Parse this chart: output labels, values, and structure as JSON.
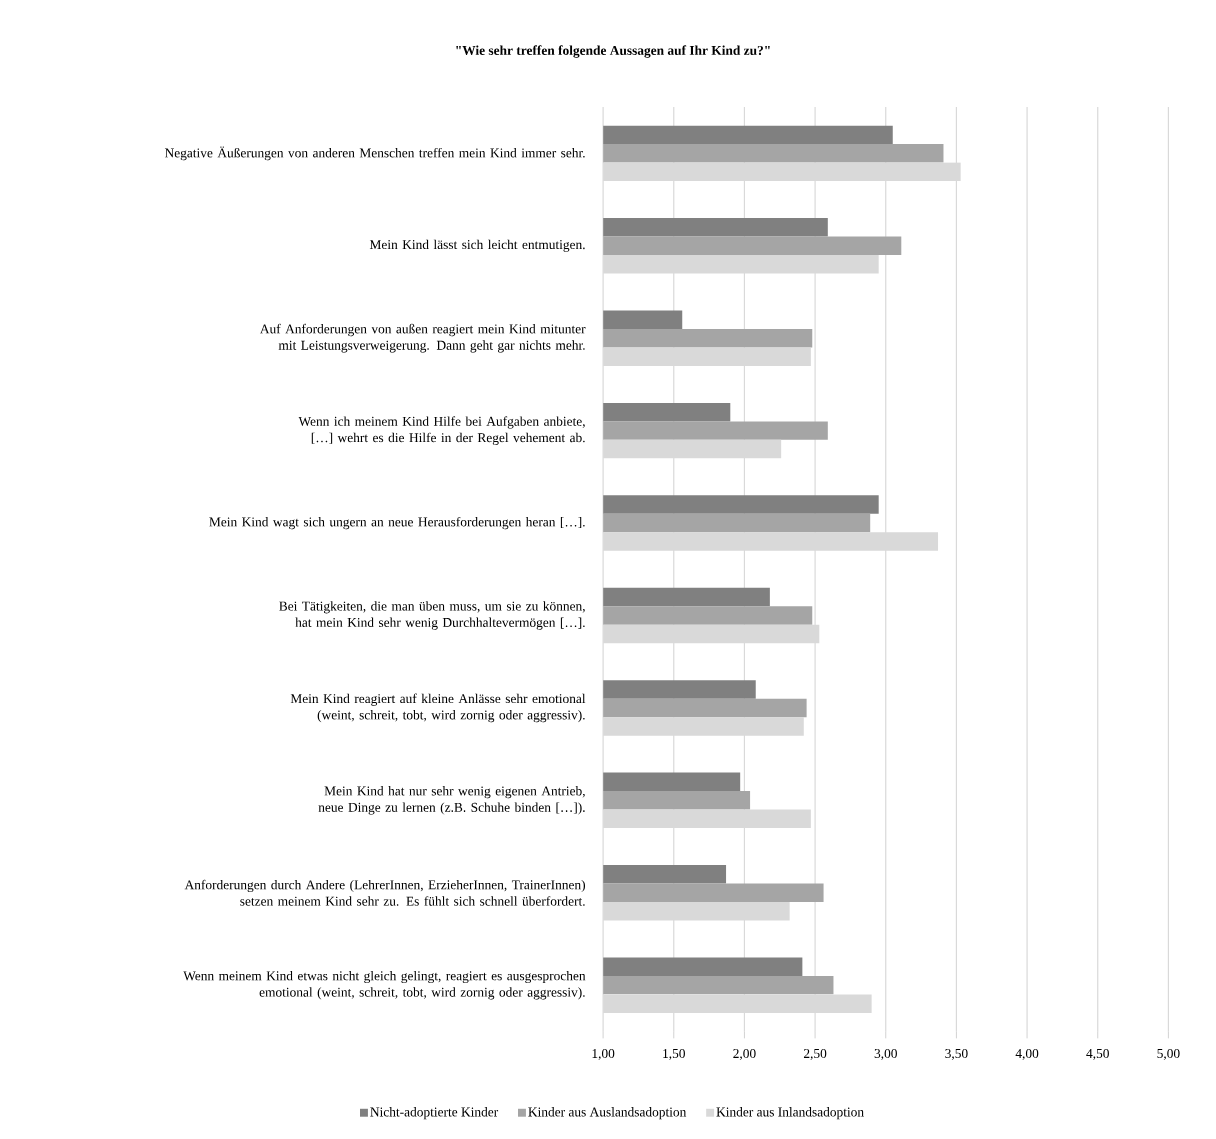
{
  "chart_data": {
    "type": "bar",
    "orientation": "horizontal",
    "title": "\"Wie sehr treffen folgende Aussagen auf Ihr Kind zu?\"",
    "categories": [
      "Negative Äußerungen von anderen Menschen treffen mein Kind immer sehr.",
      "Mein Kind lässt sich leicht entmutigen.",
      "Auf Anforderungen von außen reagiert mein Kind mitunter mit Leistungsverweigerung. Dann geht gar nichts mehr.",
      "Wenn ich meinem Kind Hilfe bei Aufgaben anbiete, […] wehrt es die Hilfe in der Regel vehement ab.",
      "Mein Kind wagt sich ungern an neue Herausforderungen heran […].",
      "Bei Tätigkeiten, die man üben muss, um sie zu können, hat mein Kind sehr wenig Durchhaltevermögen […].",
      "Mein Kind reagiert auf kleine Anlässe sehr emotional (weint, schreit, tobt, wird zornig oder aggressiv).",
      "Mein Kind hat nur sehr wenig eigenen Antrieb, neue Dinge zu lernen (z.B. Schuhe binden […]).",
      "Anforderungen durch Andere (LehrerInnen, ErzieherInnen, TrainerInnen) setzen meinem Kind sehr zu. Es fühlt sich schnell überfordert.",
      "Wenn meinem Kind etwas nicht gleich gelingt, reagiert es ausgesprochen emotional (weint, schreit, tobt, wird zornig oder aggressiv)."
    ],
    "series": [
      {
        "name": "Nicht-adoptierte Kinder",
        "color": "#808080",
        "values": [
          3.05,
          2.59,
          1.56,
          1.9,
          2.95,
          2.18,
          2.08,
          1.97,
          1.87,
          2.41
        ]
      },
      {
        "name": "Kinder aus Auslandsadoption",
        "color": "#a5a5a5",
        "values": [
          3.41,
          3.11,
          2.48,
          2.59,
          2.89,
          2.48,
          2.44,
          2.04,
          2.56,
          2.63
        ]
      },
      {
        "name": "Kinder aus Inlandsadoption",
        "color": "#d9d9d9",
        "values": [
          3.53,
          2.95,
          2.47,
          2.26,
          3.37,
          2.53,
          2.42,
          2.47,
          2.32,
          2.9
        ]
      }
    ],
    "xlim": [
      1,
      5
    ],
    "xticks": [
      {
        "value": 1,
        "label": "1,00"
      },
      {
        "value": 1.5,
        "label": "1,50"
      },
      {
        "value": 2,
        "label": "2,00"
      },
      {
        "value": 2.5,
        "label": "2,50"
      },
      {
        "value": 3,
        "label": "3,00"
      },
      {
        "value": 3.5,
        "label": "3,50"
      },
      {
        "value": 4,
        "label": "4,00"
      },
      {
        "value": 4.5,
        "label": "4,50"
      },
      {
        "value": 5,
        "label": "5,00"
      }
    ],
    "grid": "x",
    "legend": "bottom"
  }
}
